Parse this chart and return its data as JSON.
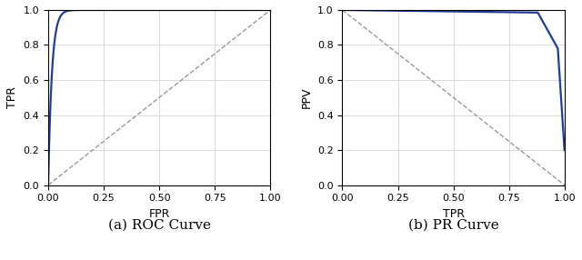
{
  "roc_xlabel": "FPR",
  "roc_ylabel": "TPR",
  "pr_xlabel": "TPR",
  "pr_ylabel": "PPV",
  "roc_title": "(a) ROC Curve",
  "pr_title": "(b) PR Curve",
  "curve_color": "#1f3d99",
  "diag_color": "#999999",
  "diag_linestyle": "--",
  "curve_linewidth": 1.6,
  "diag_linewidth": 1.0,
  "xlim": [
    0.0,
    1.0
  ],
  "ylim": [
    0.0,
    1.0
  ],
  "xticks": [
    0.0,
    0.25,
    0.5,
    0.75,
    1.0
  ],
  "yticks": [
    0.0,
    0.2,
    0.4,
    0.6,
    0.8,
    1.0
  ],
  "grid_color": "#cccccc",
  "grid_linewidth": 0.5,
  "background_color": "#ffffff",
  "figure_width": 6.4,
  "figure_height": 2.86,
  "title_fontsize": 11,
  "label_fontsize": 9,
  "tick_fontsize": 8
}
